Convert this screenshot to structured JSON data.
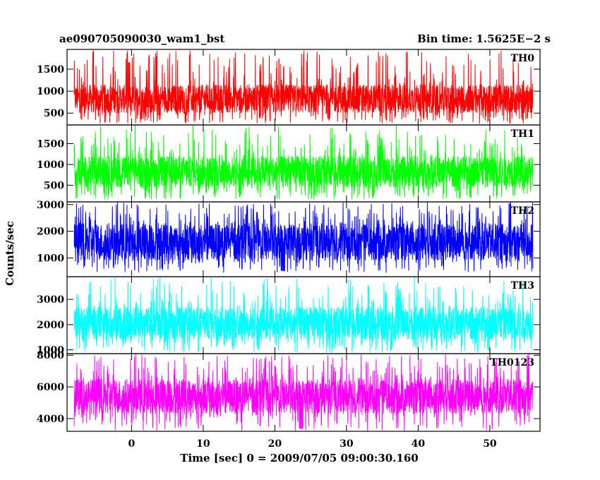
{
  "header": {
    "left_title": "ae090705090030_wam1_bst",
    "right_title": "Bin time: 1.5625E−2 s"
  },
  "chart_data": {
    "type": "line",
    "ylabel": "Counts/sec",
    "xlabel": "Time [sec] 0 = 2009/07/05 09:00:30.160",
    "xlim": [
      -9,
      57
    ],
    "x_data_range": [
      -8,
      56
    ],
    "x_ticks": [
      0,
      10,
      20,
      30,
      40,
      50
    ],
    "panels": [
      {
        "name": "TH0",
        "color": "#ff0000",
        "ylim": [
          230,
          1950
        ],
        "yticks": [
          500,
          1000,
          1500
        ],
        "typical_low": 500,
        "typical_high": 1150,
        "min": 260,
        "max": 1950
      },
      {
        "name": "TH1",
        "color": "#00ff00",
        "ylim": [
          100,
          1950
        ],
        "yticks": [
          500,
          1000,
          1500
        ],
        "typical_low": 450,
        "typical_high": 1200,
        "min": 160,
        "max": 1950
      },
      {
        "name": "TH2",
        "color": "#0000ff",
        "ylim": [
          300,
          3100
        ],
        "yticks": [
          1000,
          2000,
          3000
        ],
        "typical_low": 900,
        "typical_high": 2300,
        "min": 450,
        "max": 3100
      },
      {
        "name": "TH3",
        "color": "#00ffff",
        "ylim": [
          850,
          3900
        ],
        "yticks": [
          1000,
          2000,
          3000
        ],
        "typical_low": 1400,
        "typical_high": 2700,
        "min": 900,
        "max": 3900
      },
      {
        "name": "TH0123",
        "color": "#ff00ff",
        "ylim": [
          3200,
          8100
        ],
        "yticks": [
          4000,
          6000,
          8000
        ],
        "typical_low": 4300,
        "typical_high": 6500,
        "min": 3200,
        "max": 8100
      }
    ]
  }
}
